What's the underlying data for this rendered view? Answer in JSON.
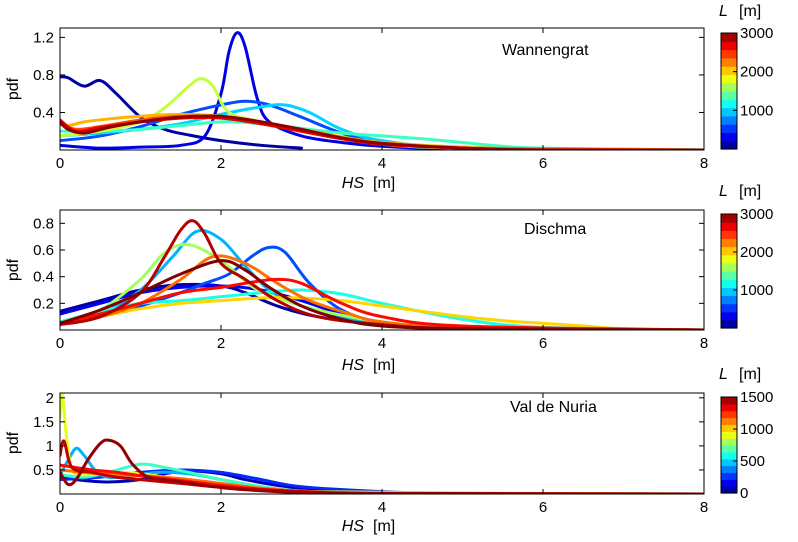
{
  "chart_data": [
    {
      "type": "line",
      "title": "Wannengrat",
      "xlabel": "HS",
      "xlabel_unit": "[m]",
      "ylabel": "pdf",
      "xlim": [
        0,
        8
      ],
      "ylim": [
        0,
        1.3
      ],
      "xticks": [
        "0",
        "2",
        "4",
        "6",
        "8"
      ],
      "yticks": [
        0.4,
        0.8,
        1.2
      ],
      "yticklabels": [
        "0.4",
        "0.8",
        "1.2"
      ],
      "grid": false,
      "colorbar": {
        "label": "L",
        "unit": "[m]",
        "min": 0,
        "max": 3000,
        "ticks": [
          "1000",
          "2000",
          "3000"
        ],
        "tickvalues": [
          1000,
          2000,
          3000
        ],
        "colormap": "jet"
      },
      "series": [
        {
          "L": 100,
          "x": [
            0,
            0.1,
            0.3,
            0.5,
            0.7,
            1.0,
            1.3,
            1.6,
            2.0,
            2.5,
            3.0
          ],
          "y": [
            0.78,
            0.77,
            0.68,
            0.74,
            0.6,
            0.35,
            0.22,
            0.16,
            0.1,
            0.05,
            0.02
          ]
        },
        {
          "L": 300,
          "x": [
            0,
            0.5,
            1.0,
            1.5,
            1.8,
            2.0,
            2.1,
            2.2,
            2.3,
            2.45,
            2.6,
            3.0,
            3.5,
            4.0,
            5.0,
            8.0
          ],
          "y": [
            0.05,
            0.02,
            0.03,
            0.05,
            0.15,
            0.6,
            1.05,
            1.25,
            1.1,
            0.55,
            0.3,
            0.15,
            0.08,
            0.04,
            0.01,
            0.0
          ]
        },
        {
          "L": 600,
          "x": [
            0,
            0.5,
            1.0,
            1.5,
            2.0,
            2.3,
            2.6,
            3.0,
            3.5,
            4.0,
            5.0,
            8.0
          ],
          "y": [
            0.1,
            0.15,
            0.25,
            0.38,
            0.48,
            0.52,
            0.48,
            0.35,
            0.18,
            0.08,
            0.02,
            0.0
          ]
        },
        {
          "L": 1000,
          "x": [
            0,
            0.5,
            1.0,
            1.5,
            2.0,
            2.5,
            2.8,
            3.1,
            3.5,
            4.0,
            5.0,
            8.0
          ],
          "y": [
            0.15,
            0.18,
            0.22,
            0.28,
            0.38,
            0.46,
            0.48,
            0.4,
            0.22,
            0.1,
            0.03,
            0.0
          ]
        },
        {
          "L": 1300,
          "x": [
            0,
            0.5,
            1.0,
            1.5,
            2.0,
            2.5,
            3.0,
            3.5,
            4.0,
            4.5,
            5.0,
            5.5,
            6.0,
            8.0
          ],
          "y": [
            0.2,
            0.2,
            0.22,
            0.26,
            0.3,
            0.28,
            0.23,
            0.18,
            0.15,
            0.12,
            0.08,
            0.04,
            0.02,
            0.0
          ]
        },
        {
          "L": 1700,
          "x": [
            0,
            0.5,
            1.0,
            1.3,
            1.6,
            1.75,
            1.9,
            2.1,
            2.5,
            3.0,
            3.5,
            4.0,
            5.0,
            8.0
          ],
          "y": [
            0.15,
            0.2,
            0.3,
            0.45,
            0.68,
            0.76,
            0.68,
            0.4,
            0.3,
            0.2,
            0.12,
            0.06,
            0.02,
            0.0
          ]
        },
        {
          "L": 2100,
          "x": [
            0,
            0.1,
            0.3,
            0.6,
            1.0,
            1.5,
            2.0,
            2.5,
            3.0,
            3.5,
            4.0,
            5.0,
            6.0,
            8.0
          ],
          "y": [
            0.3,
            0.26,
            0.3,
            0.33,
            0.36,
            0.38,
            0.36,
            0.3,
            0.22,
            0.14,
            0.08,
            0.03,
            0.01,
            0.0
          ]
        },
        {
          "L": 2400,
          "x": [
            0,
            0.2,
            0.5,
            1.0,
            1.5,
            2.0,
            2.5,
            3.0,
            3.5,
            4.0,
            5.0,
            6.0,
            8.0
          ],
          "y": [
            0.28,
            0.22,
            0.25,
            0.32,
            0.36,
            0.35,
            0.28,
            0.2,
            0.12,
            0.07,
            0.02,
            0.01,
            0.0
          ]
        },
        {
          "L": 2700,
          "x": [
            0,
            0.2,
            0.5,
            1.0,
            1.5,
            2.0,
            2.5,
            3.0,
            3.5,
            4.0,
            5.0,
            6.0,
            8.0
          ],
          "y": [
            0.32,
            0.2,
            0.24,
            0.3,
            0.34,
            0.34,
            0.28,
            0.2,
            0.12,
            0.06,
            0.02,
            0.0,
            0.0
          ]
        },
        {
          "L": 2950,
          "x": [
            0,
            0.1,
            0.3,
            0.6,
            1.0,
            1.5,
            2.0,
            2.5,
            3.0,
            3.5,
            4.0,
            5.0,
            6.0,
            8.0
          ],
          "y": [
            0.3,
            0.22,
            0.18,
            0.24,
            0.3,
            0.35,
            0.36,
            0.3,
            0.22,
            0.13,
            0.07,
            0.02,
            0.0,
            0.0
          ]
        }
      ]
    },
    {
      "type": "line",
      "title": "Dischma",
      "xlabel": "HS",
      "xlabel_unit": "[m]",
      "ylabel": "pdf",
      "xlim": [
        0,
        8
      ],
      "ylim": [
        0,
        0.9
      ],
      "xticks": [
        "0",
        "2",
        "4",
        "6",
        "8"
      ],
      "yticks": [
        0.2,
        0.4,
        0.6,
        0.8
      ],
      "yticklabels": [
        "0.2",
        "0.4",
        "0.6",
        "0.8"
      ],
      "grid": false,
      "colorbar": {
        "label": "L",
        "unit": "[m]",
        "min": 0,
        "max": 3000,
        "ticks": [
          "1000",
          "2000",
          "3000"
        ],
        "tickvalues": [
          1000,
          2000,
          3000
        ],
        "colormap": "jet"
      },
      "series": [
        {
          "L": 100,
          "x": [
            0,
            0.5,
            1.0,
            1.5,
            2.0,
            2.3,
            2.7,
            3.2,
            4.0,
            5.0,
            8.0
          ],
          "y": [
            0.14,
            0.22,
            0.3,
            0.34,
            0.33,
            0.28,
            0.18,
            0.1,
            0.04,
            0.01,
            0.0
          ]
        },
        {
          "L": 350,
          "x": [
            0,
            0.5,
            1.0,
            1.5,
            2.0,
            2.5,
            3.0,
            3.5,
            4.0,
            5.0,
            8.0
          ],
          "y": [
            0.12,
            0.2,
            0.28,
            0.32,
            0.33,
            0.3,
            0.22,
            0.12,
            0.06,
            0.01,
            0.0
          ]
        },
        {
          "L": 600,
          "x": [
            0,
            0.5,
            1.0,
            1.5,
            1.8,
            2.1,
            2.4,
            2.6,
            2.8,
            3.1,
            3.5,
            4.0,
            5.0,
            8.0
          ],
          "y": [
            0.06,
            0.1,
            0.18,
            0.28,
            0.35,
            0.42,
            0.56,
            0.62,
            0.58,
            0.35,
            0.15,
            0.06,
            0.02,
            0.0
          ]
        },
        {
          "L": 900,
          "x": [
            0,
            0.5,
            1.0,
            1.4,
            1.7,
            2.0,
            2.3,
            2.6,
            3.0,
            3.5,
            4.0,
            5.0,
            8.0
          ],
          "y": [
            0.05,
            0.12,
            0.3,
            0.55,
            0.74,
            0.68,
            0.48,
            0.3,
            0.18,
            0.1,
            0.05,
            0.01,
            0.0
          ]
        },
        {
          "L": 1200,
          "x": [
            0,
            0.5,
            1.0,
            1.5,
            2.0,
            2.5,
            3.0,
            3.5,
            4.0,
            5.0,
            6.0,
            8.0
          ],
          "y": [
            0.06,
            0.14,
            0.2,
            0.22,
            0.25,
            0.28,
            0.3,
            0.27,
            0.2,
            0.08,
            0.02,
            0.0
          ]
        },
        {
          "L": 1600,
          "x": [
            0,
            0.5,
            1.0,
            1.3,
            1.6,
            2.0,
            2.4,
            2.8,
            3.2,
            4.0,
            5.0,
            8.0
          ],
          "y": [
            0.05,
            0.15,
            0.38,
            0.58,
            0.64,
            0.52,
            0.32,
            0.22,
            0.15,
            0.06,
            0.02,
            0.0
          ]
        },
        {
          "L": 2000,
          "x": [
            0,
            0.5,
            1.0,
            1.5,
            2.0,
            2.5,
            3.0,
            3.5,
            4.0,
            4.5,
            5.0,
            5.5,
            6.0,
            6.5,
            7.0,
            8.0
          ],
          "y": [
            0.05,
            0.1,
            0.16,
            0.2,
            0.22,
            0.24,
            0.24,
            0.22,
            0.18,
            0.14,
            0.1,
            0.07,
            0.05,
            0.03,
            0.01,
            0.0
          ]
        },
        {
          "L": 2300,
          "x": [
            0,
            0.5,
            1.0,
            1.5,
            1.9,
            2.3,
            2.7,
            3.1,
            3.6,
            4.0,
            5.0,
            8.0
          ],
          "y": [
            0.05,
            0.1,
            0.2,
            0.38,
            0.55,
            0.5,
            0.35,
            0.22,
            0.12,
            0.06,
            0.02,
            0.0
          ]
        },
        {
          "L": 2600,
          "x": [
            0,
            0.5,
            1.0,
            1.5,
            2.0,
            2.4,
            2.7,
            3.0,
            3.5,
            4.0,
            5.0,
            8.0
          ],
          "y": [
            0.05,
            0.12,
            0.2,
            0.28,
            0.32,
            0.36,
            0.38,
            0.35,
            0.2,
            0.1,
            0.03,
            0.0
          ]
        },
        {
          "L": 2850,
          "x": [
            0,
            0.5,
            1.0,
            1.3,
            1.5,
            1.65,
            1.8,
            2.0,
            2.3,
            2.7,
            3.2,
            4.0,
            5.0,
            8.0
          ],
          "y": [
            0.04,
            0.1,
            0.28,
            0.55,
            0.75,
            0.82,
            0.72,
            0.5,
            0.38,
            0.22,
            0.1,
            0.04,
            0.01,
            0.0
          ]
        },
        {
          "L": 3000,
          "x": [
            0,
            0.5,
            1.0,
            1.5,
            2.0,
            2.3,
            2.6,
            3.0,
            3.5,
            4.0,
            5.0,
            8.0
          ],
          "y": [
            0.05,
            0.15,
            0.28,
            0.42,
            0.52,
            0.45,
            0.32,
            0.18,
            0.08,
            0.03,
            0.01,
            0.0
          ]
        }
      ]
    },
    {
      "type": "line",
      "title": "Val de Nuria",
      "xlabel": "HS",
      "xlabel_unit": "[m]",
      "ylabel": "pdf",
      "xlim": [
        0,
        8
      ],
      "ylim": [
        0,
        2.1
      ],
      "xticks": [
        "0",
        "2",
        "4",
        "6",
        "8"
      ],
      "yticks": [
        0.5,
        1,
        1.5,
        2
      ],
      "yticklabels": [
        "0.5",
        "1",
        "1.5",
        "2"
      ],
      "grid": false,
      "colorbar": {
        "label": "L",
        "unit": "[m]",
        "min": 0,
        "max": 1500,
        "ticks": [
          "0",
          "500",
          "1000",
          "1500"
        ],
        "tickvalues": [
          0,
          500,
          1000,
          1500
        ],
        "colormap": "jet"
      },
      "series": [
        {
          "L": 80,
          "x": [
            0,
            0.3,
            0.6,
            1.0,
            1.3,
            1.6,
            2.0,
            2.3,
            2.7,
            3.2,
            4.0,
            5.0,
            8.0
          ],
          "y": [
            0.35,
            0.28,
            0.25,
            0.3,
            0.42,
            0.48,
            0.42,
            0.3,
            0.18,
            0.08,
            0.02,
            0.0,
            0.0
          ]
        },
        {
          "L": 250,
          "x": [
            0,
            0.5,
            1.0,
            1.5,
            2.0,
            2.5,
            3.0,
            4.0,
            5.0,
            8.0
          ],
          "y": [
            0.3,
            0.35,
            0.45,
            0.5,
            0.45,
            0.3,
            0.15,
            0.05,
            0.01,
            0.0
          ]
        },
        {
          "L": 450,
          "x": [
            0,
            0.1,
            0.2,
            0.3,
            0.5,
            0.8,
            1.2,
            1.6,
            2.0,
            2.5,
            3.0,
            4.0,
            8.0
          ],
          "y": [
            0.4,
            0.7,
            0.95,
            0.8,
            0.4,
            0.35,
            0.45,
            0.42,
            0.3,
            0.15,
            0.06,
            0.01,
            0.0
          ]
        },
        {
          "L": 650,
          "x": [
            0,
            0.3,
            0.6,
            1.0,
            1.3,
            1.6,
            2.0,
            2.5,
            3.0,
            4.0,
            8.0
          ],
          "y": [
            0.4,
            0.35,
            0.45,
            0.62,
            0.55,
            0.45,
            0.3,
            0.15,
            0.06,
            0.01,
            0.0
          ]
        },
        {
          "L": 900,
          "x": [
            0,
            0.03,
            0.08,
            0.15,
            0.3,
            0.6,
            1.0,
            1.5,
            2.0,
            3.0,
            8.0
          ],
          "y": [
            1.6,
            2.05,
            1.2,
            0.5,
            0.4,
            0.45,
            0.42,
            0.3,
            0.2,
            0.05,
            0.0
          ]
        },
        {
          "L": 1150,
          "x": [
            0,
            0.5,
            1.0,
            1.5,
            2.0,
            2.5,
            3.0,
            4.0,
            8.0
          ],
          "y": [
            0.5,
            0.42,
            0.38,
            0.32,
            0.22,
            0.12,
            0.06,
            0.02,
            0.0
          ]
        },
        {
          "L": 1300,
          "x": [
            0,
            0.2,
            0.4,
            0.7,
            1.0,
            1.5,
            2.0,
            2.5,
            3.0,
            4.0,
            8.0
          ],
          "y": [
            0.6,
            0.55,
            0.5,
            0.45,
            0.38,
            0.28,
            0.18,
            0.1,
            0.05,
            0.01,
            0.0
          ]
        },
        {
          "L": 1400,
          "x": [
            0,
            0.05,
            0.15,
            0.4,
            0.7,
            1.0,
            1.5,
            2.0,
            3.0,
            4.0,
            8.0
          ],
          "y": [
            0.8,
            1.1,
            0.55,
            0.45,
            0.35,
            0.3,
            0.22,
            0.14,
            0.05,
            0.01,
            0.0
          ]
        },
        {
          "L": 1470,
          "x": [
            0,
            0.1,
            0.2,
            0.35,
            0.5,
            0.6,
            0.75,
            0.9,
            1.1,
            1.4,
            1.8,
            2.2,
            3.0,
            4.0,
            8.0
          ],
          "y": [
            0.45,
            0.2,
            0.3,
            0.72,
            1.05,
            1.12,
            1.0,
            0.62,
            0.35,
            0.28,
            0.18,
            0.1,
            0.03,
            0.01,
            0.0
          ]
        }
      ]
    }
  ]
}
